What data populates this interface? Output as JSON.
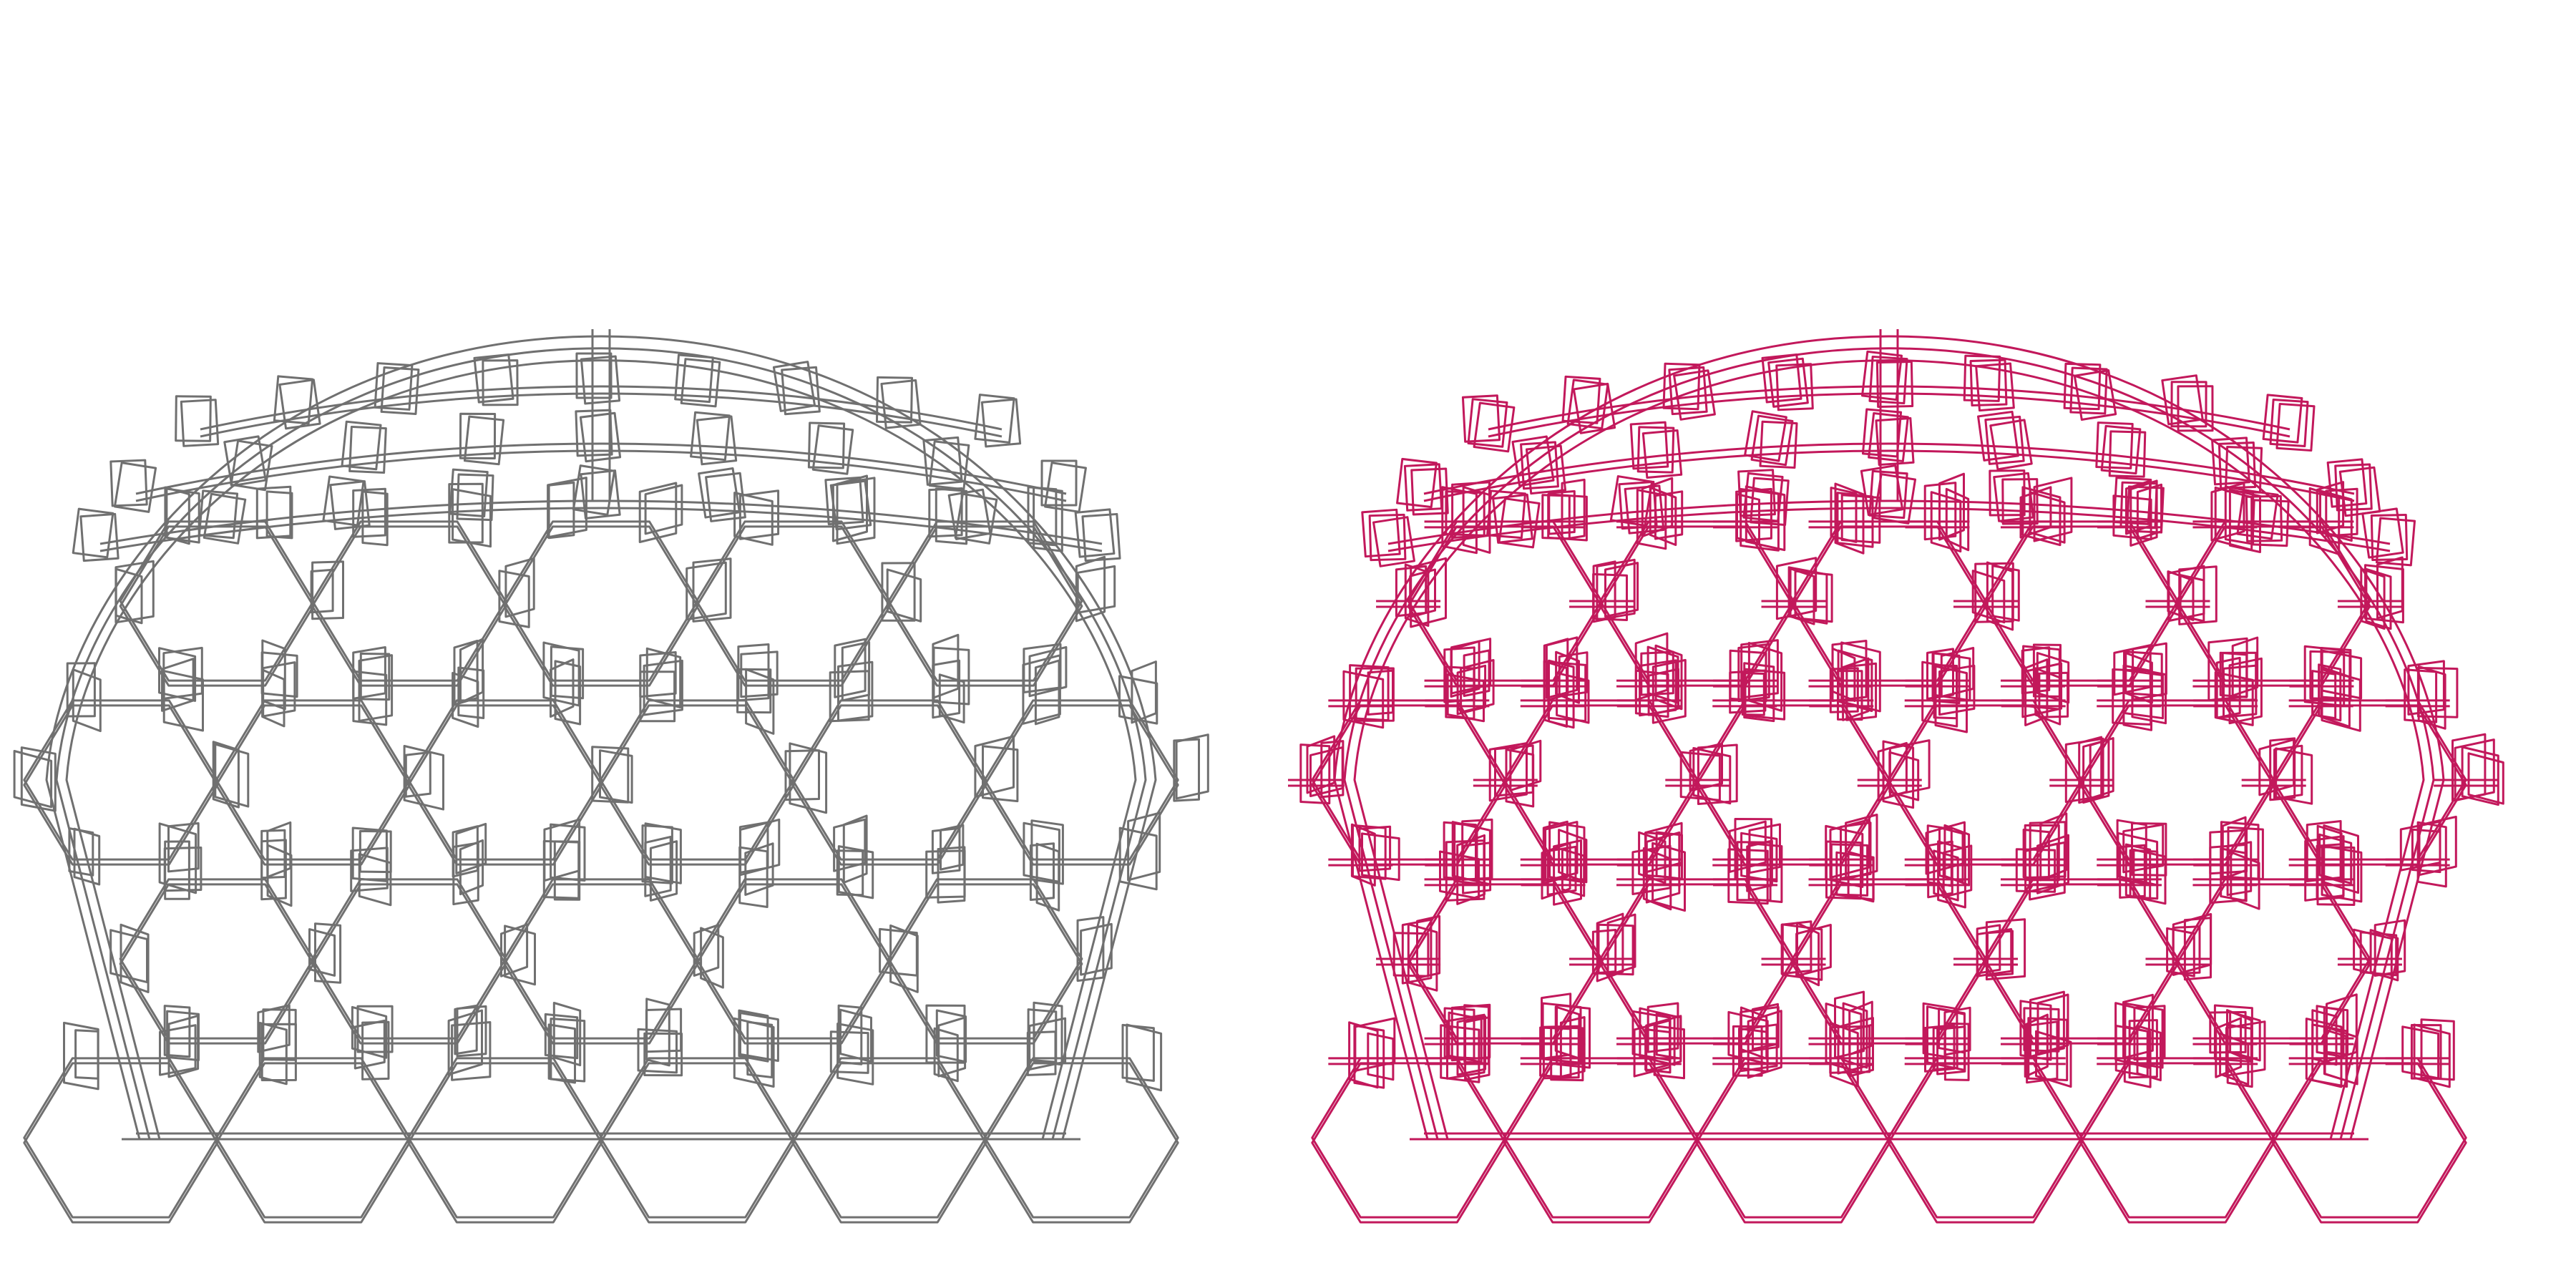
{
  "figures": [
    {
      "id": "left",
      "stroke": "#707070",
      "style": "wireframe",
      "connector_detail": "light"
    },
    {
      "id": "right",
      "stroke": "#C2185B",
      "style": "wireframe",
      "connector_detail": "dense"
    }
  ],
  "background": "#ffffff"
}
